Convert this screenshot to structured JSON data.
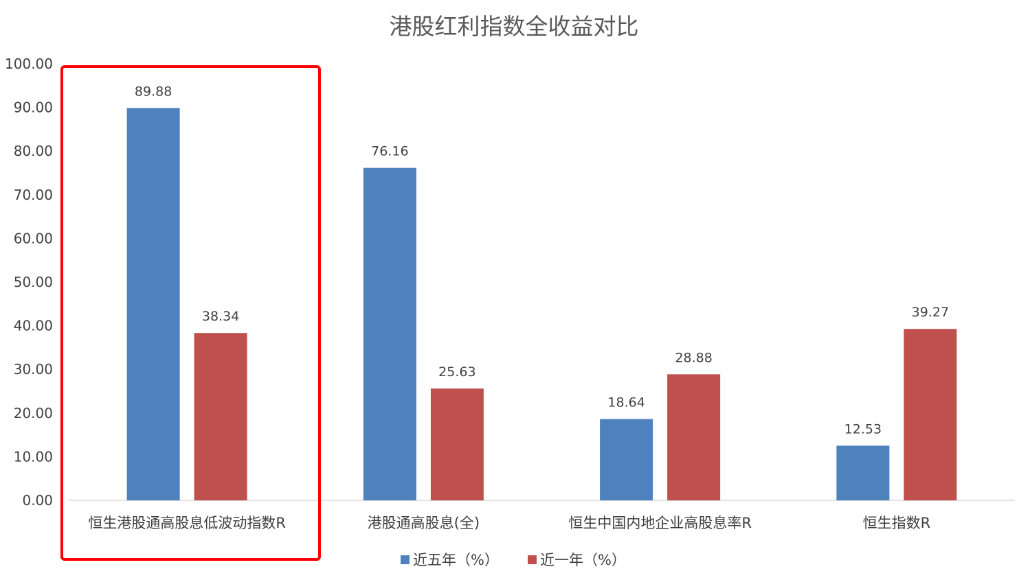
{
  "chart_data": {
    "type": "bar",
    "title": "港股红利指数全收益对比",
    "xlabel": "",
    "ylabel": "",
    "ylim": [
      0,
      100
    ],
    "yticks": [
      "0.00",
      "10.00",
      "20.00",
      "30.00",
      "40.00",
      "50.00",
      "60.00",
      "70.00",
      "80.00",
      "90.00",
      "100.00"
    ],
    "grid": false,
    "legend_position": "bottom",
    "categories": [
      "恒生港股通高股息低波动指数R",
      "港股通高股息(全)",
      "恒生中国内地企业高股息率R",
      "恒生指数R"
    ],
    "series": [
      {
        "name": "近五年（%）",
        "color": "#4f81bd",
        "values": [
          89.88,
          76.16,
          18.64,
          12.53
        ],
        "labels": [
          "89.88",
          "76.16",
          "18.64",
          "12.53"
        ]
      },
      {
        "name": "近一年（%）",
        "color": "#c0504d",
        "values": [
          38.34,
          25.63,
          28.88,
          39.27
        ],
        "labels": [
          "38.34",
          "25.63",
          "28.88",
          "39.27"
        ]
      }
    ],
    "highlight": {
      "category_index": 0,
      "color": "#ff0000"
    }
  }
}
